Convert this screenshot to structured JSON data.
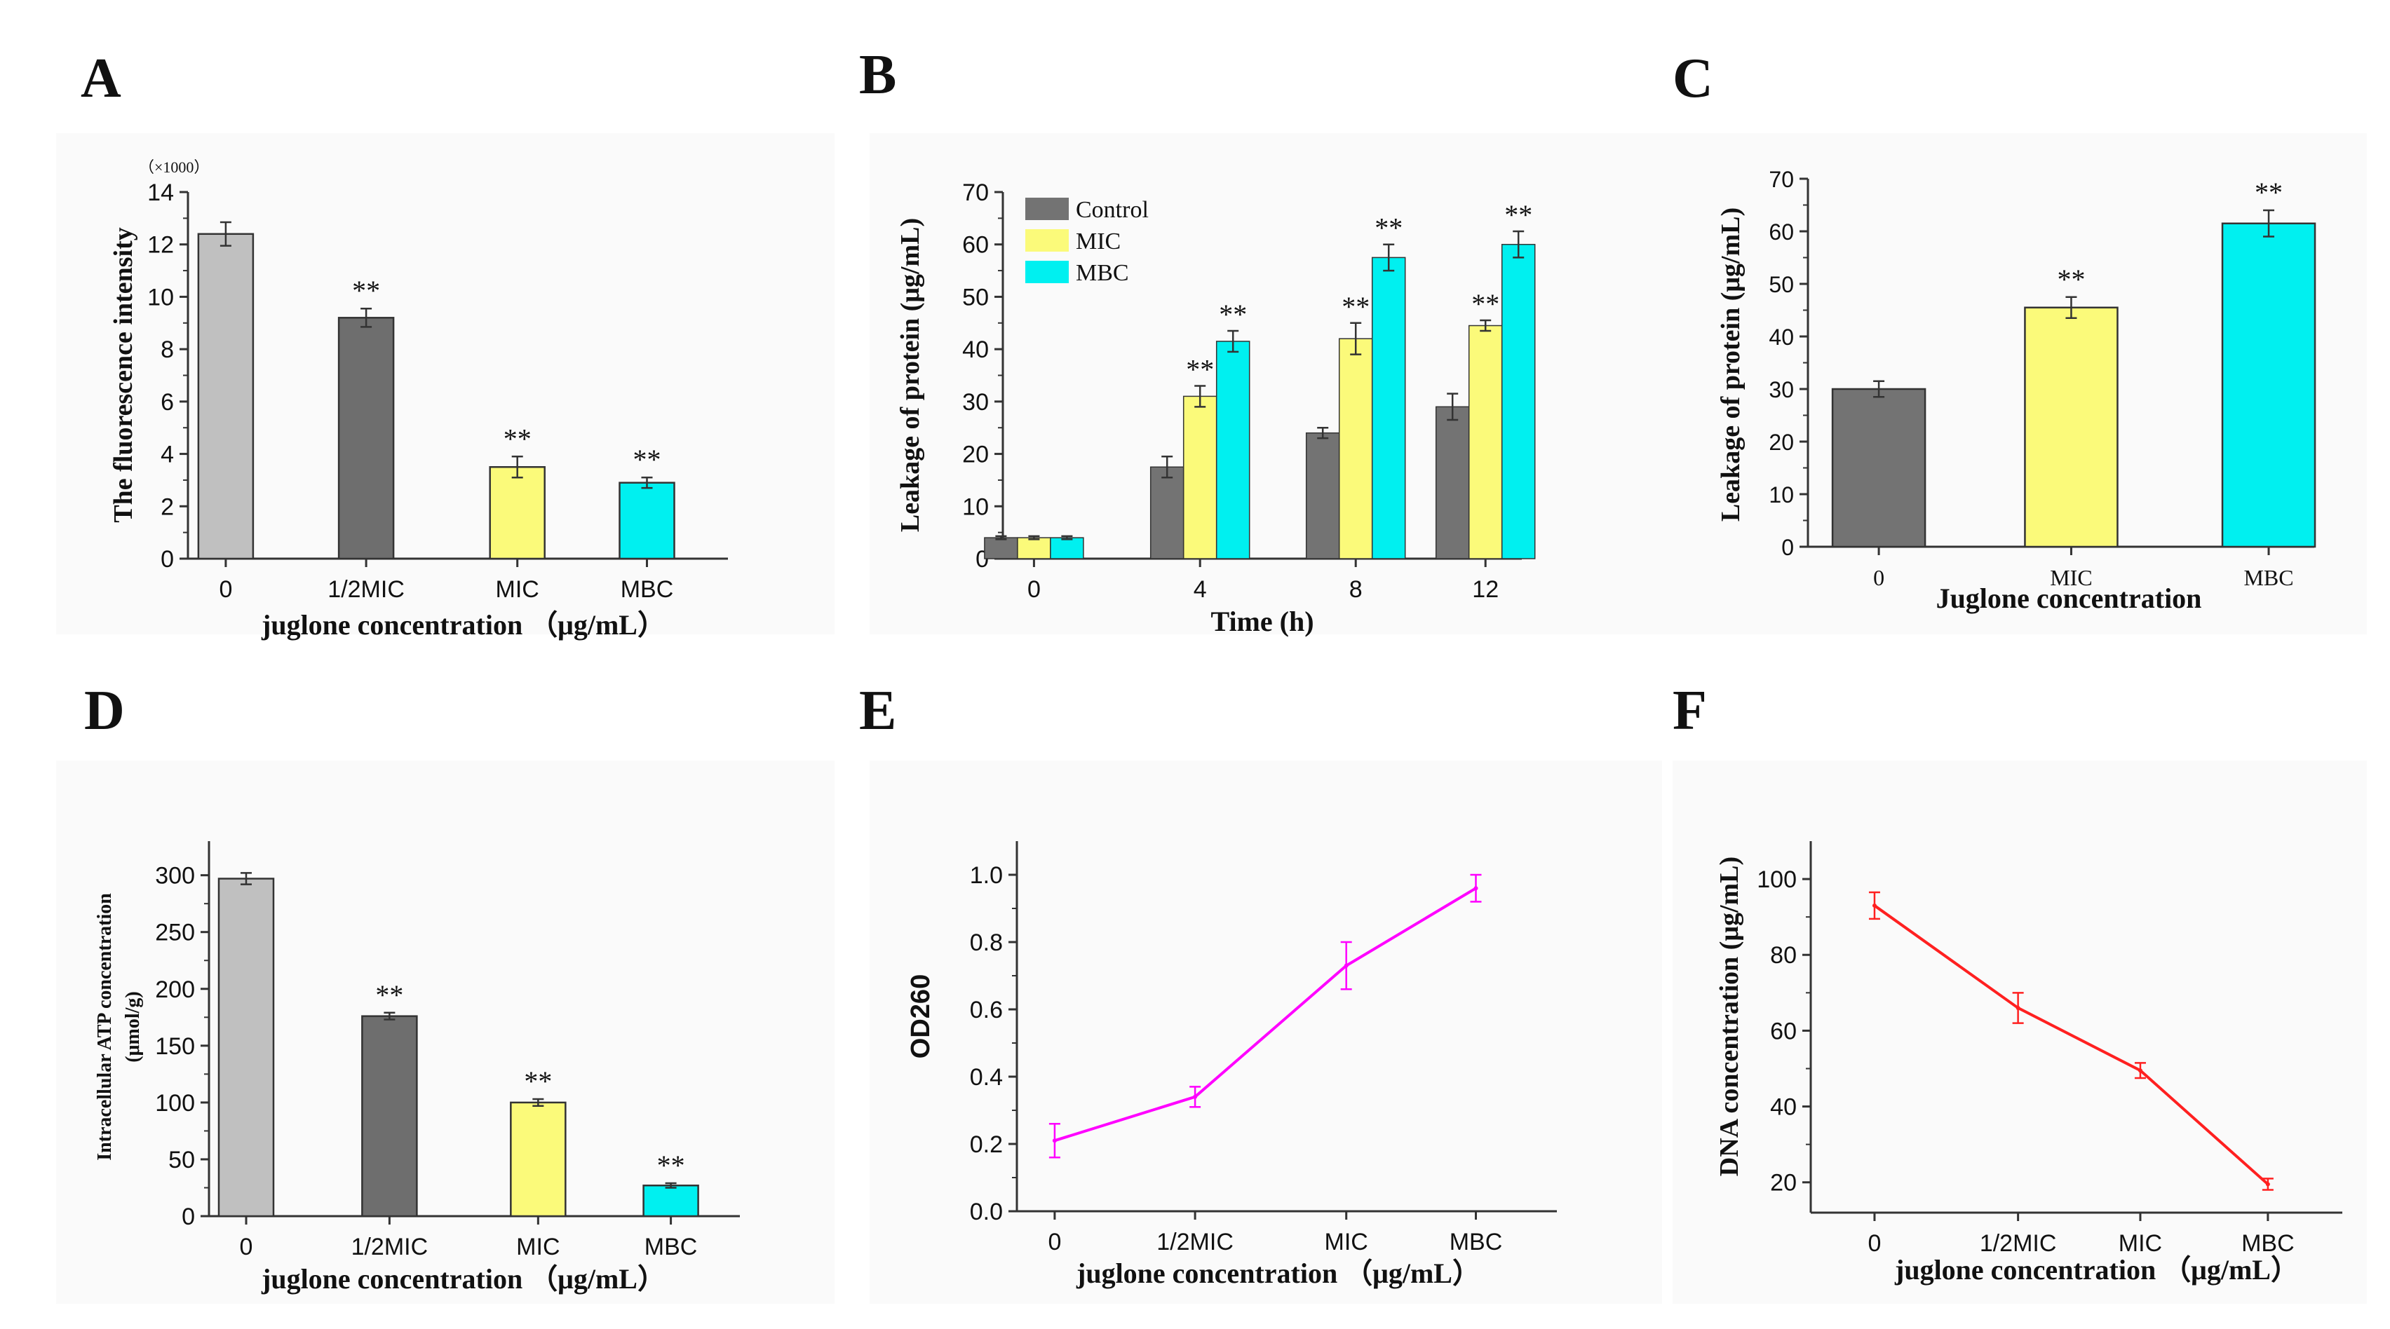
{
  "figure": {
    "background": "#ffffff",
    "panel_background": "#fafafa",
    "axis_color": "#333333"
  },
  "chart_data": [
    {
      "id": "A",
      "type": "bar",
      "panel_label": "A",
      "categories": [
        "0",
        "1/2MIC",
        "MIC",
        "MBC"
      ],
      "values": [
        12.4,
        9.2,
        3.5,
        2.9
      ],
      "errors": [
        0.45,
        0.35,
        0.4,
        0.2
      ],
      "significance": [
        "",
        "**",
        "**",
        "**"
      ],
      "colors": [
        "#c0c0c0",
        "#6e6e6e",
        "#fbfa7a",
        "#00f0f0"
      ],
      "xlabel": "juglone concentration （μg/mL）",
      "ylabel": "The fluorescence intensity",
      "multiplier": "（×1000）",
      "ylim": [
        0,
        14
      ],
      "yticks": [
        "0",
        "2",
        "4",
        "6",
        "8",
        "10",
        "12",
        "14"
      ]
    },
    {
      "id": "B",
      "type": "bar",
      "panel_label": "B",
      "categories": [
        "0",
        "4",
        "8",
        "12"
      ],
      "series": [
        {
          "name": "Control",
          "color": "#737373",
          "values": [
            4.0,
            17.5,
            24.0,
            29.0
          ],
          "errors": [
            0.3,
            2.0,
            1.0,
            2.5
          ],
          "significance": [
            "",
            "",
            "",
            ""
          ]
        },
        {
          "name": "MIC",
          "color": "#fbfa7a",
          "values": [
            4.0,
            31.0,
            42.0,
            44.5
          ],
          "errors": [
            0.3,
            2.0,
            3.0,
            1.0
          ],
          "significance": [
            "",
            "**",
            "**",
            "**"
          ]
        },
        {
          "name": "MBC",
          "color": "#00f0f0",
          "values": [
            4.0,
            41.5,
            57.5,
            60.0
          ],
          "errors": [
            0.3,
            2.0,
            2.5,
            2.5
          ],
          "significance": [
            "",
            "**",
            "**",
            "**"
          ]
        }
      ],
      "xlabel": "Time (h)",
      "ylabel": "Leakage of protein (μg/mL)",
      "ylim": [
        0,
        70
      ],
      "yticks": [
        "0",
        "10",
        "20",
        "30",
        "40",
        "50",
        "60",
        "70"
      ],
      "legend_position": "top-left"
    },
    {
      "id": "C",
      "type": "bar",
      "panel_label": "C",
      "categories": [
        "0",
        "MIC",
        "MBC"
      ],
      "values": [
        30.0,
        45.5,
        61.5
      ],
      "errors": [
        1.5,
        2.0,
        2.5
      ],
      "significance": [
        "",
        "**",
        "**"
      ],
      "colors": [
        "#737373",
        "#fbfa7a",
        "#00f0f0"
      ],
      "xlabel": "Juglone concentration",
      "ylabel": "Leakage of protein (μg/mL)",
      "ylim": [
        0,
        70
      ],
      "yticks": [
        "0",
        "10",
        "20",
        "30",
        "40",
        "50",
        "60",
        "70"
      ]
    },
    {
      "id": "D",
      "type": "bar",
      "panel_label": "D",
      "categories": [
        "0",
        "1/2MIC",
        "MIC",
        "MBC"
      ],
      "values": [
        297,
        176,
        100,
        27
      ],
      "errors": [
        5,
        3,
        3,
        2
      ],
      "significance": [
        "",
        "**",
        "**",
        "**"
      ],
      "colors": [
        "#c0c0c0",
        "#6e6e6e",
        "#fbfa7a",
        "#00f0f0"
      ],
      "xlabel": "juglone concentration （μg/mL）",
      "ylabel": "Intracellular ATP concentration",
      "ylabel2": "(μmol/g)",
      "ylim": [
        0,
        330
      ],
      "yticks": [
        "0",
        "50",
        "100",
        "150",
        "200",
        "250",
        "300"
      ]
    },
    {
      "id": "E",
      "type": "line",
      "panel_label": "E",
      "categories": [
        "0",
        "1/2MIC",
        "MIC",
        "MBC"
      ],
      "values": [
        0.21,
        0.34,
        0.73,
        0.96
      ],
      "errors": [
        0.05,
        0.03,
        0.07,
        0.04
      ],
      "color": "#ff00ff",
      "xlabel": "juglone concentration （μg/mL）",
      "ylabel": "OD260",
      "ylim": [
        0.0,
        1.1
      ],
      "yticks": [
        "0.0",
        "0.2",
        "0.4",
        "0.6",
        "0.8",
        "1.0"
      ]
    },
    {
      "id": "F",
      "type": "line",
      "panel_label": "F",
      "categories": [
        "0",
        "1/2MIC",
        "MIC",
        "MBC"
      ],
      "values": [
        93,
        66,
        49.5,
        19.5
      ],
      "errors": [
        3.5,
        4.0,
        2.0,
        1.5
      ],
      "color": "#ff2020",
      "xlabel": "juglone concentration （μg/mL）",
      "ylabel": "DNA concentration (μg/mL)",
      "ylim": [
        12,
        110
      ],
      "yticks": [
        "20",
        "40",
        "60",
        "80",
        "100"
      ]
    }
  ]
}
